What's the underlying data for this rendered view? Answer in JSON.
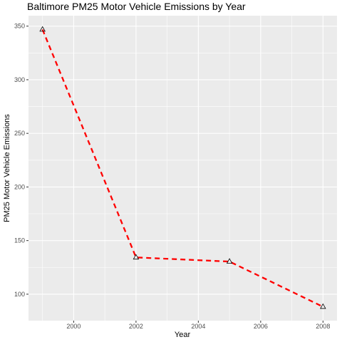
{
  "chart_data": {
    "type": "line",
    "title": "Baltimore PM25 Motor Vehicle Emissions by Year",
    "xlabel": "Year",
    "ylabel": "PM25 Motor Vehicle Emissions",
    "x": [
      1999,
      2002,
      2005,
      2008
    ],
    "series": [
      {
        "values": [
          346.82,
          134.31,
          130.43,
          88.28
        ]
      }
    ],
    "xlim": [
      1998.55,
      2008.45
    ],
    "ylim": [
      75.35,
      359.75
    ],
    "xticks": [
      2000,
      2002,
      2004,
      2006,
      2008
    ],
    "xtick_labels": [
      "2000",
      "2002",
      "2004",
      "2006",
      "2008"
    ],
    "xminor": [
      1999,
      2001,
      2003,
      2005,
      2007
    ],
    "yticks": [
      100,
      150,
      200,
      250,
      300,
      350
    ],
    "ytick_labels": [
      "100",
      "150",
      "200",
      "250",
      "300",
      "350"
    ],
    "yminor": [
      125,
      175,
      225,
      275,
      325
    ],
    "grid": true,
    "line_style": "dashed",
    "marker": "triangle-open",
    "colors": {
      "line": "#ff0000",
      "panel": "#ebebeb",
      "grid": "#ffffff",
      "marker": "#000000",
      "tick_text": "#4d4d4d"
    }
  }
}
